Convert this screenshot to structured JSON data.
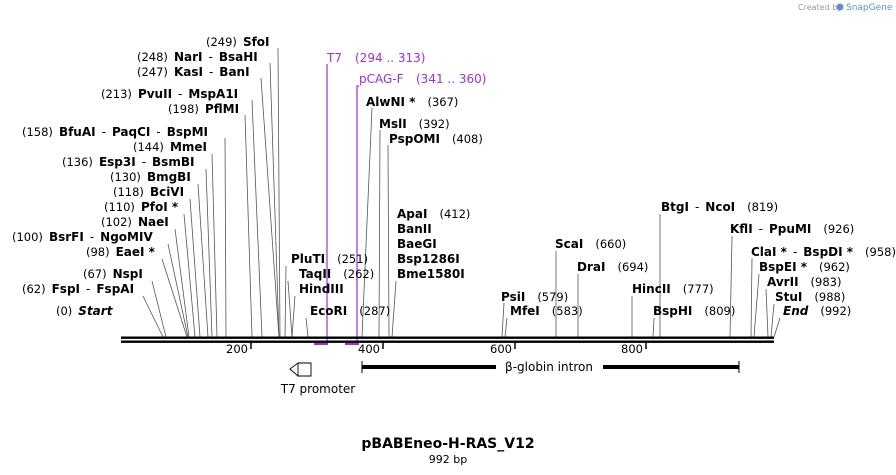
{
  "credit": {
    "text": "Created by",
    "brand": "SnapGene"
  },
  "plasmid": {
    "name": "pBABEneo-H-RAS_V12",
    "length_label": "992 bp"
  },
  "ruler_ticks": [
    "200",
    "400",
    "600",
    "800"
  ],
  "primers": [
    {
      "name": "T7",
      "range": "(294 .. 313)"
    },
    {
      "name": "pCAG-F",
      "range": "(341 .. 360)"
    }
  ],
  "labels": [
    {
      "pos": "(249)",
      "names": [
        "SfoI"
      ]
    },
    {
      "pos": "(248)",
      "names": [
        "NarI",
        "BsaHI"
      ]
    },
    {
      "pos": "(247)",
      "names": [
        "KasI",
        "BanI"
      ]
    },
    {
      "pos": "(213)",
      "names": [
        "PvuII",
        "MspA1I"
      ]
    },
    {
      "pos": "(198)",
      "names": [
        "PflMI"
      ]
    },
    {
      "pos": "(158)",
      "names": [
        "BfuAI",
        "PaqCI",
        "BspMI"
      ]
    },
    {
      "pos": "(144)",
      "names": [
        "MmeI"
      ]
    },
    {
      "pos": "(136)",
      "names": [
        "Esp3I",
        "BsmBI"
      ]
    },
    {
      "pos": "(130)",
      "names": [
        "BmgBI"
      ]
    },
    {
      "pos": "(118)",
      "names": [
        "BciVI"
      ]
    },
    {
      "pos": "(110)",
      "names": [
        "PfoI *"
      ]
    },
    {
      "pos": "(102)",
      "names": [
        "NaeI"
      ]
    },
    {
      "pos": "(100)",
      "names": [
        "BsrFI",
        "NgoMIV"
      ]
    },
    {
      "pos": "(98)",
      "names": [
        "EaeI *"
      ]
    },
    {
      "pos": "(67)",
      "names": [
        "NspI"
      ]
    },
    {
      "pos": "(62)",
      "names": [
        "FspI",
        "FspAI"
      ]
    },
    {
      "pos": "(0)",
      "names": [
        "Start"
      ]
    },
    {
      "pos": "(251)",
      "names": [
        "PluTI"
      ]
    },
    {
      "pos": "(262)",
      "names": [
        "TaqII"
      ]
    },
    {
      "pos": "",
      "names": [
        "HindIII"
      ]
    },
    {
      "pos": "(287)",
      "names": [
        "EcoRI"
      ]
    },
    {
      "pos": "(367)",
      "names": [
        "AlwNI *"
      ]
    },
    {
      "pos": "(392)",
      "names": [
        "MslI"
      ]
    },
    {
      "pos": "(408)",
      "names": [
        "PspOMI"
      ]
    },
    {
      "pos": "(412)",
      "names": [
        "ApaI"
      ]
    },
    {
      "pos": "",
      "names": [
        "BanII"
      ]
    },
    {
      "pos": "",
      "names": [
        "BaeGI"
      ]
    },
    {
      "pos": "",
      "names": [
        "Bsp1286I"
      ]
    },
    {
      "pos": "",
      "names": [
        "Bme1580I"
      ]
    },
    {
      "pos": "(579)",
      "names": [
        "PsiI"
      ]
    },
    {
      "pos": "(583)",
      "names": [
        "MfeI"
      ]
    },
    {
      "pos": "(660)",
      "names": [
        "ScaI"
      ]
    },
    {
      "pos": "(694)",
      "names": [
        "DraI"
      ]
    },
    {
      "pos": "(777)",
      "names": [
        "HincII"
      ]
    },
    {
      "pos": "(809)",
      "names": [
        "BspHI"
      ]
    },
    {
      "pos": "(819)",
      "names": [
        "BtgI",
        "NcoI"
      ]
    },
    {
      "pos": "(926)",
      "names": [
        "KflI",
        "PpuMI"
      ]
    },
    {
      "pos": "(958)",
      "names": [
        "ClaI *",
        "BspDI *"
      ]
    },
    {
      "pos": "(962)",
      "names": [
        "BspEI *"
      ]
    },
    {
      "pos": "(983)",
      "names": [
        "AvrII"
      ]
    },
    {
      "pos": "(988)",
      "names": [
        "StuI"
      ]
    },
    {
      "pos": "(992)",
      "names": [
        "End"
      ]
    }
  ],
  "features": [
    {
      "name": "T7 promoter"
    },
    {
      "name": "β-globin intron"
    }
  ]
}
